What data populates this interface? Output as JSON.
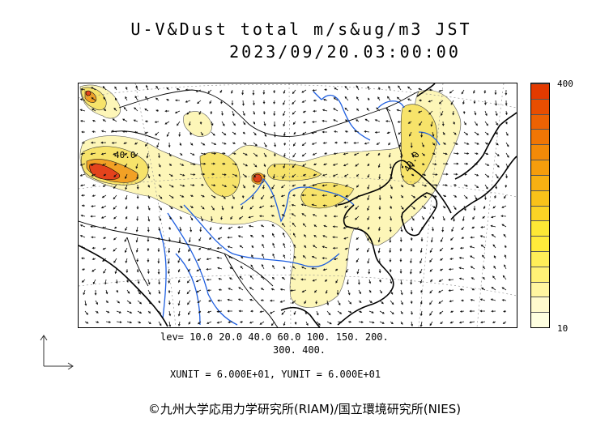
{
  "title_line1": "U-V&Dust total m/s&ug/m3 JST",
  "title_line2": "2023/09/20.03:00:00",
  "colorbar": {
    "max_label": "400",
    "min_label": "10",
    "colors": [
      "#ffffe0",
      "#fffacd",
      "#fff5a0",
      "#fff176",
      "#ffee58",
      "#ffeb3b",
      "#fde835",
      "#fbd325",
      "#f9c21a",
      "#f7b012",
      "#f59d0c",
      "#f38a08",
      "#f07605",
      "#ec6203",
      "#e84e01",
      "#e33a00"
    ]
  },
  "contour_labels": [
    "40.0",
    "40.0"
  ],
  "levels_line1": "lev= 10.0 20.0 40.0 60.0 100. 150. 200.",
  "levels_line2": "300. 400.",
  "unit_line": "XUNIT = 6.000E+01, YUNIT = 6.000E+01",
  "copyright": "©九州大学応用力学研究所(RIAM)/国立環境研究所(NIES)",
  "colors": {
    "coast": "#000000",
    "river": "#1f5fe0",
    "dust_light": "#fdf6b8",
    "dust_mid": "#f7e36a",
    "dust_high": "#f2a125",
    "dust_peak": "#e4431c"
  }
}
